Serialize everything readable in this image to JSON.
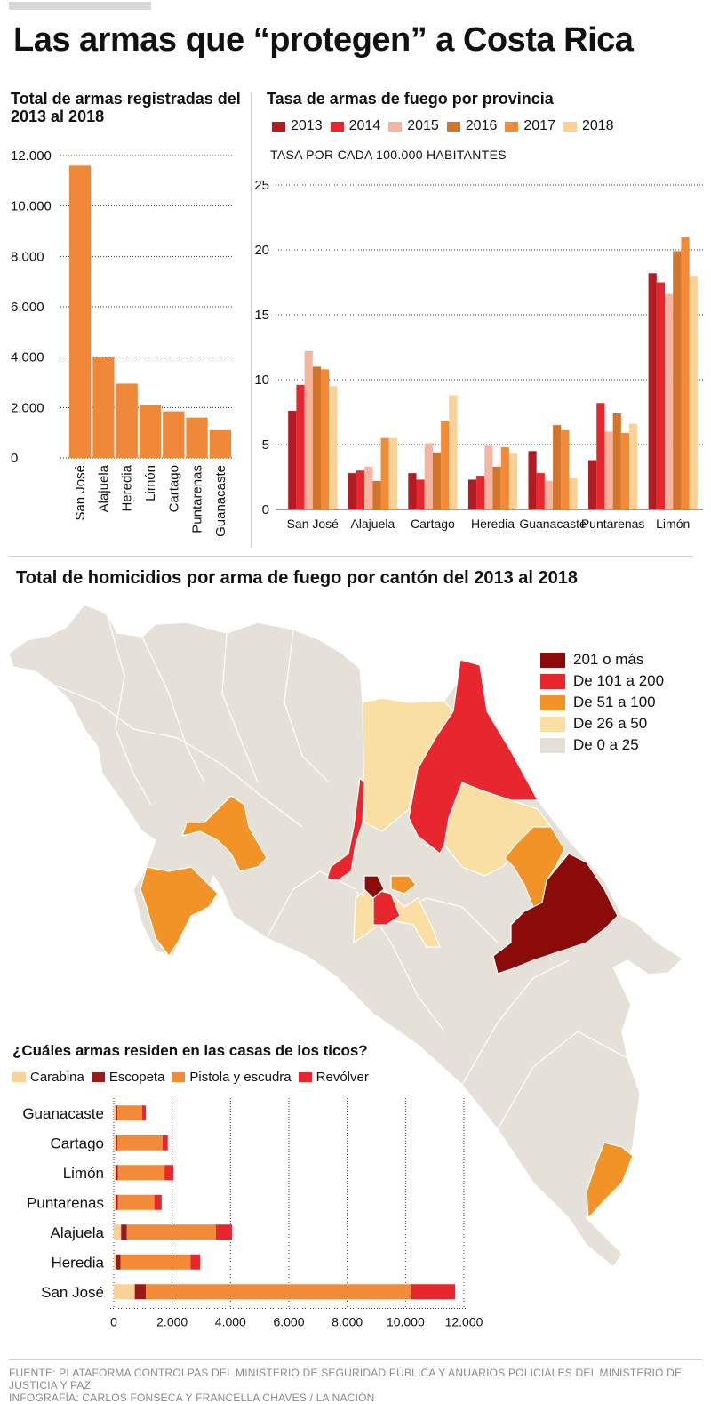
{
  "page": {
    "title": "Las armas que “protegen” a Costa Rica"
  },
  "total_arms": {
    "title": "Total de armas registradas del 2013 al 2018",
    "chart_data": {
      "type": "bar",
      "title": "Total de armas registradas del 2013 al 2018",
      "categories": [
        "San José",
        "Alajuela",
        "Heredia",
        "Limón",
        "Cartago",
        "Puntarenas",
        "Guanacaste"
      ],
      "values": [
        11600,
        4000,
        2950,
        2100,
        1850,
        1600,
        1100
      ],
      "ylim": [
        0,
        12000
      ],
      "yticks": [
        "0",
        "2.000",
        "4.000",
        "6.000",
        "8.000",
        "10.000",
        "12.000"
      ],
      "grid": true,
      "color": "#f0883a"
    }
  },
  "rate": {
    "title": "Tasa de armas de fuego por provincia",
    "unit": "TASA POR CADA 100.000 HABITANTES",
    "chart_data": {
      "type": "bar",
      "title": "Tasa de armas de fuego por provincia",
      "ylabel": "TASA POR CADA 100.000 HABITANTES",
      "categories": [
        "San José",
        "Alajuela",
        "Cartago",
        "Heredia",
        "Guanacaste",
        "Puntarenas",
        "Limón"
      ],
      "ylim": [
        0,
        25
      ],
      "yticks": [
        "0",
        "5",
        "10",
        "15",
        "20",
        "25"
      ],
      "grid": true,
      "legend": "top",
      "series": [
        {
          "name": "2013",
          "color": "#b31b22",
          "values": [
            7.6,
            2.8,
            2.8,
            2.3,
            4.5,
            3.8,
            18.2
          ]
        },
        {
          "name": "2014",
          "color": "#e8262d",
          "values": [
            9.6,
            3.0,
            2.3,
            2.6,
            2.8,
            8.2,
            17.5
          ]
        },
        {
          "name": "2015",
          "color": "#f5b5a0",
          "values": [
            12.2,
            3.3,
            5.1,
            4.9,
            2.2,
            6.0,
            16.6
          ]
        },
        {
          "name": "2016",
          "color": "#d2752a",
          "values": [
            11.0,
            2.2,
            4.4,
            3.3,
            6.5,
            7.4,
            19.9
          ]
        },
        {
          "name": "2017",
          "color": "#f28a37",
          "values": [
            10.8,
            5.5,
            6.8,
            4.8,
            6.1,
            5.9,
            21.0
          ]
        },
        {
          "name": "2018",
          "color": "#fad197",
          "values": [
            9.5,
            5.5,
            8.8,
            4.3,
            2.4,
            6.6,
            18.0
          ]
        }
      ]
    }
  },
  "homicides": {
    "title": "Total de homicidios por arma de fuego por cantón del 2013 al 2018",
    "legend": [
      {
        "label": "201 o más",
        "color": "#8b0a0a"
      },
      {
        "label": "De 101 a 200",
        "color": "#e8262d"
      },
      {
        "label": "De 51 a 100",
        "color": "#f29328"
      },
      {
        "label": "De 26 a 50",
        "color": "#fadfa4"
      },
      {
        "label": "De 0 a 25",
        "color": "#e5e1d8"
      }
    ]
  },
  "weapons": {
    "title": "¿Cuáles armas residen en las casas de los ticos?",
    "chart_data": {
      "type": "bar",
      "orientation": "horizontal",
      "stacked": true,
      "title": "¿Cuáles armas residen en las casas de los ticos?",
      "categories": [
        "Guanacaste",
        "Cartago",
        "Limón",
        "Puntarenas",
        "Alajuela",
        "Heredia",
        "San José"
      ],
      "xlim": [
        0,
        12000
      ],
      "xticks": [
        "0",
        "2.000",
        "4.000",
        "6.000",
        "8.000",
        "10.000",
        "12.000"
      ],
      "legend": "top",
      "series": [
        {
          "name": "Carabina",
          "color": "#fad197",
          "values": [
            60,
            60,
            60,
            60,
            250,
            80,
            720
          ]
        },
        {
          "name": "Escopeta",
          "color": "#9a1a1a",
          "values": [
            60,
            60,
            80,
            80,
            200,
            150,
            380
          ]
        },
        {
          "name": "Pistola y escudra",
          "color": "#f28a37",
          "values": [
            850,
            1550,
            1600,
            1250,
            3050,
            2400,
            9100
          ]
        },
        {
          "name": "Revólver",
          "color": "#e8262d",
          "values": [
            130,
            180,
            300,
            250,
            550,
            330,
            1500
          ]
        }
      ]
    }
  },
  "footer": {
    "source": "FUENTE: PLATAFORMA CONTROLPAS DEL MINISTERIO DE SEGURIDAD PÚBLICA Y ANUARIOS POLICIALES DEL MINISTERIO DE JUSTICIA Y PAZ",
    "credit": "INFOGRAFÍA: CARLOS FONSECA Y FRANCELLA CHAVES  /  LA NACIÓN"
  }
}
